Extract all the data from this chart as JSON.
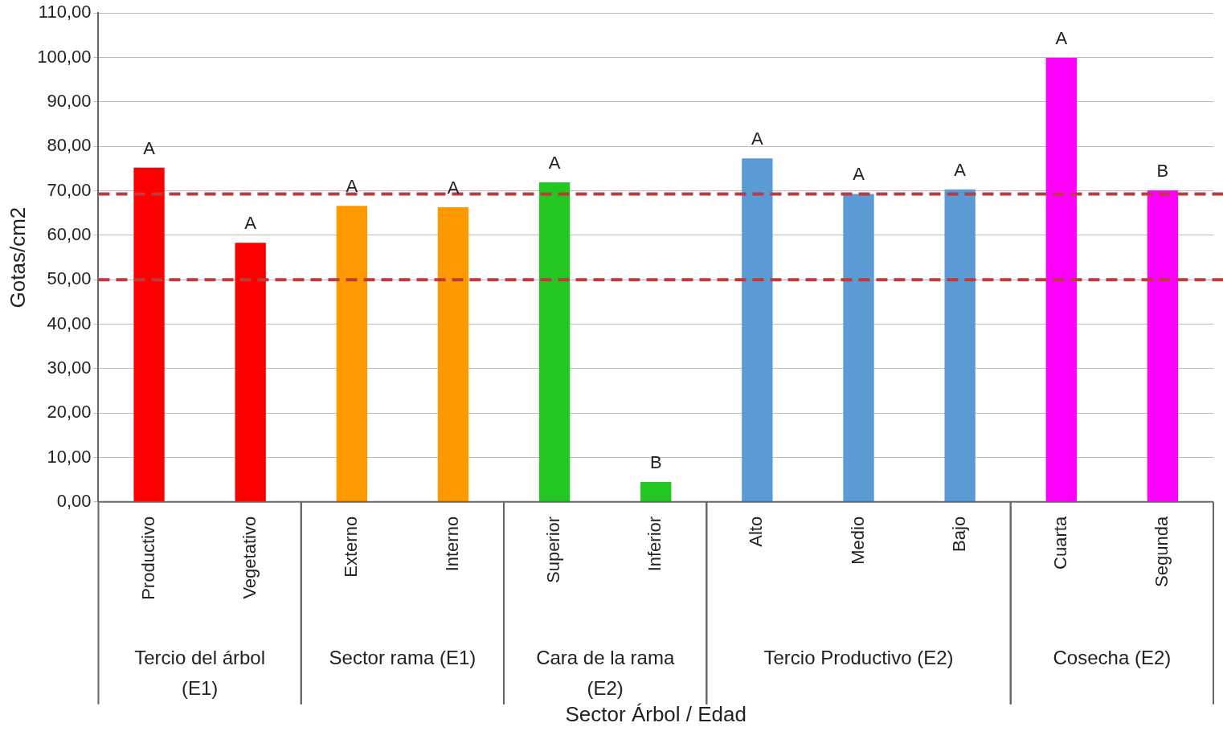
{
  "chart_data": {
    "type": "bar",
    "xlabel": "Sector Árbol / Edad",
    "ylabel": "Gotas/cm2",
    "categories": [
      "Productivo",
      "Vegetativo",
      "Externo",
      "Interno",
      "Superior",
      "Inferior",
      "Alto",
      "Medio",
      "Bajo",
      "Cuarta",
      "Segunda"
    ],
    "series": [
      {
        "color": "#ff0000",
        "values": [
          75.2,
          58.3,
          null,
          null,
          null,
          null,
          null,
          null,
          null,
          null,
          null
        ],
        "value_labels": [
          "A",
          "A",
          null,
          null,
          null,
          null,
          null,
          null,
          null,
          null,
          null
        ]
      },
      {
        "color": "#ff9900",
        "values": [
          null,
          null,
          66.6,
          66.3,
          null,
          null,
          null,
          null,
          null,
          null,
          null
        ],
        "value_labels": [
          null,
          null,
          "A",
          "A",
          null,
          null,
          null,
          null,
          null,
          null,
          null
        ]
      },
      {
        "color": "#22c722",
        "values": [
          null,
          null,
          null,
          null,
          71.9,
          4.5,
          null,
          null,
          null,
          null,
          null
        ],
        "value_labels": [
          null,
          null,
          null,
          null,
          "A",
          "B",
          null,
          null,
          null,
          null,
          null
        ]
      },
      {
        "color": "#5b9bd5",
        "values": [
          null,
          null,
          null,
          null,
          null,
          null,
          77.3,
          69.3,
          70.3,
          null,
          null
        ],
        "value_labels": [
          null,
          null,
          null,
          null,
          null,
          null,
          "A",
          "A",
          "A",
          null,
          null
        ]
      },
      {
        "color": "#ff00ff",
        "values": [
          null,
          null,
          null,
          null,
          null,
          null,
          null,
          null,
          null,
          99.9,
          70.1
        ],
        "value_labels": [
          null,
          null,
          null,
          null,
          null,
          null,
          null,
          null,
          null,
          "A",
          "B"
        ]
      }
    ],
    "ylim": [
      0,
      110
    ],
    "yticks": [
      {
        "value": 0,
        "label": "0,00"
      },
      {
        "value": 10,
        "label": "10,00"
      },
      {
        "value": 20,
        "label": "20,00"
      },
      {
        "value": 30,
        "label": "30,00"
      },
      {
        "value": 40,
        "label": "40,00"
      },
      {
        "value": 50,
        "label": "50,00"
      },
      {
        "value": 60,
        "label": "60,00"
      },
      {
        "value": 70,
        "label": "70,00"
      },
      {
        "value": 80,
        "label": "80,00"
      },
      {
        "value": 90,
        "label": "90,00"
      },
      {
        "value": 100,
        "label": "100,00"
      },
      {
        "value": 110,
        "label": "110,00"
      }
    ],
    "ref_lines": [
      {
        "axis": "y",
        "value": 69.3,
        "label": null,
        "color": "#c0393b",
        "line_style": "dashed"
      },
      {
        "axis": "y",
        "value": 50,
        "label": null,
        "color": "#c0393b",
        "line_style": "dashed"
      }
    ],
    "annotations": [
      "Tercio del árbol (E1)",
      "Sector rama (E1)",
      "Cara de la rama (E2)",
      "Tercio Productivo (E2)",
      "Cosecha (E2)"
    ],
    "grid": "y",
    "legend": false
  }
}
